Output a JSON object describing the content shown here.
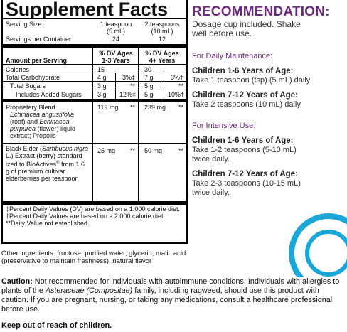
{
  "facts": {
    "title": "Supplement Facts",
    "serving_size_label": "Serving Size",
    "serving_size_col2": [
      "1 teaspoon",
      "(5 mL)"
    ],
    "serving_size_col3": [
      "2 teaspoons",
      "(10 mL)"
    ],
    "servings_label": "Servings per Container",
    "servings_col2": "24",
    "servings_col3": "12",
    "amount_label": "Amount per Serving",
    "dv_col2": [
      "% DV Ages",
      "1-3 Years"
    ],
    "dv_col3": [
      "% DV Ages",
      "4+ Years"
    ],
    "rows": {
      "calories": {
        "name": "Calories",
        "amt2": "15",
        "amt3": "30"
      },
      "carb": {
        "name": "Total Carbohydrate",
        "amt2": "4 g",
        "pct2": "3%‡",
        "amt3": "7 g",
        "pct3": "3%†"
      },
      "sugars": {
        "name": "Total Sugars",
        "amt2": "3 g",
        "pct2": "**",
        "amt3": "5 g",
        "pct3": "**"
      },
      "added": {
        "name": "Includes Added Sugars",
        "amt2": "3 g",
        "pct2": "12%‡",
        "amt3": "5 g",
        "pct3": "10%†"
      },
      "blend": {
        "name": "Proprietary Blend",
        "desc_parts": [
          "Echinacea angustifolia",
          " (root) and ",
          "Echinacea purpurea",
          " (flower) liquid extract; Propolis"
        ],
        "amt2": "119 mg",
        "pct2": "**",
        "amt3": "239 mg",
        "pct3": "**"
      },
      "elder": {
        "desc_parts": [
          "Black Elder (",
          "Sambucus nigra",
          " L.) Extract (berry) standard-ized to BioActives",
          "®",
          " from 1.6 g of premium cultivar elderberries per teaspoon"
        ],
        "amt2": "25 mg",
        "pct2": "**",
        "amt3": "50 mg",
        "pct3": "**"
      }
    },
    "footnotes": [
      "‡Percent Daily Values (DV) are based on a 1,000 calorie diet.",
      "†Percent Daily Values are based on a 2,000 calorie diet.",
      "**Daily Value not established."
    ]
  },
  "recommendation": {
    "title": "RECOMMENDATION:",
    "subtitle": [
      "Dosage cup included. Shake",
      "well before use."
    ],
    "maintenance_heading": "For Daily Maintenance:",
    "maintenance": [
      {
        "age": "Children 1-6 Years of Age:",
        "dose": [
          "Take 1 teaspoon (tsp) (5 mL) daily."
        ]
      },
      {
        "age": "Children 7-12 Years of Age:",
        "dose": [
          "Take 2 teaspoons (10 mL) daily."
        ]
      }
    ],
    "intensive_heading": "For Intensive Use:",
    "intensive": [
      {
        "age": "Children 1-6 Years of Age:",
        "dose": [
          "Take 1-2 teaspoons (5-10 mL)",
          "twice daily."
        ]
      },
      {
        "age": "Children 7-12 Years of Age:",
        "dose": [
          "Take 2-3 teaspoons (10-15 mL)",
          "twice daily."
        ]
      }
    ]
  },
  "other_ingredients": "Other ingredients: fructose, purified water, glycerin, malic acid (preservative to maintain freshness), natural flavor",
  "caution": {
    "label": "Caution:",
    "text_parts": [
      " Not recommended for individuals with autoimmune conditions. Individuals with allergies to plants of the ",
      "Asteraceae (Compositae)",
      " family, including ragweed, should use this product with caution. If you are pregnant, nursing, or taking any medications, consult a healthcare professional before use."
    ]
  },
  "keep_out": "Keep out of reach of children.",
  "colors": {
    "accent_purple": "#6b2a7d",
    "ring_blue": "#1aa6d6"
  }
}
